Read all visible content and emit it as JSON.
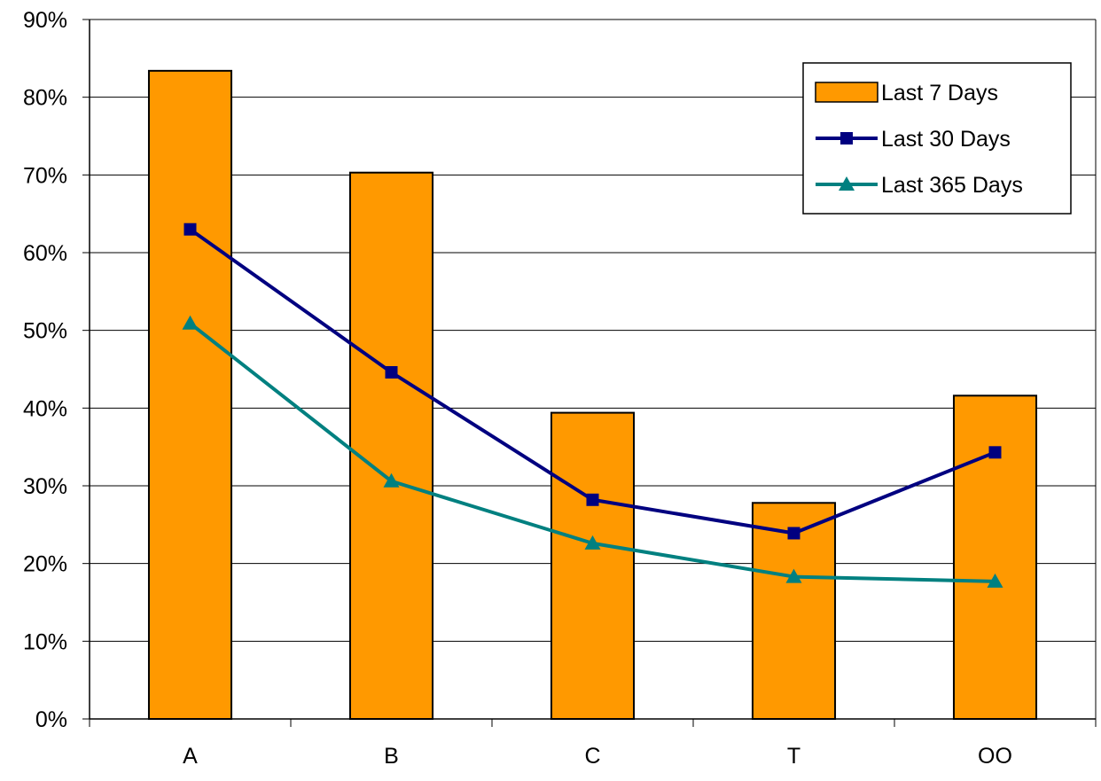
{
  "chart_data": {
    "type": "bar",
    "categories": [
      "A",
      "B",
      "C",
      "T",
      "OO"
    ],
    "ylim": [
      0,
      0.9
    ],
    "y_ticks": [
      "0%",
      "10%",
      "20%",
      "30%",
      "40%",
      "50%",
      "60%",
      "70%",
      "80%",
      "90%"
    ],
    "grid": true,
    "legend_position": "top-right",
    "series": [
      {
        "name": "Last 7 Days",
        "type": "bar",
        "color": "#ff9900",
        "marker": "rect",
        "values": [
          0.834,
          0.703,
          0.394,
          0.278,
          0.416
        ]
      },
      {
        "name": "Last 30 Days",
        "type": "line",
        "color": "#000080",
        "marker": "square",
        "values": [
          0.63,
          0.446,
          0.282,
          0.239,
          0.343
        ]
      },
      {
        "name": "Last 365 Days",
        "type": "line",
        "color": "#008080",
        "marker": "triangle",
        "values": [
          0.509,
          0.306,
          0.226,
          0.183,
          0.177
        ]
      }
    ]
  }
}
